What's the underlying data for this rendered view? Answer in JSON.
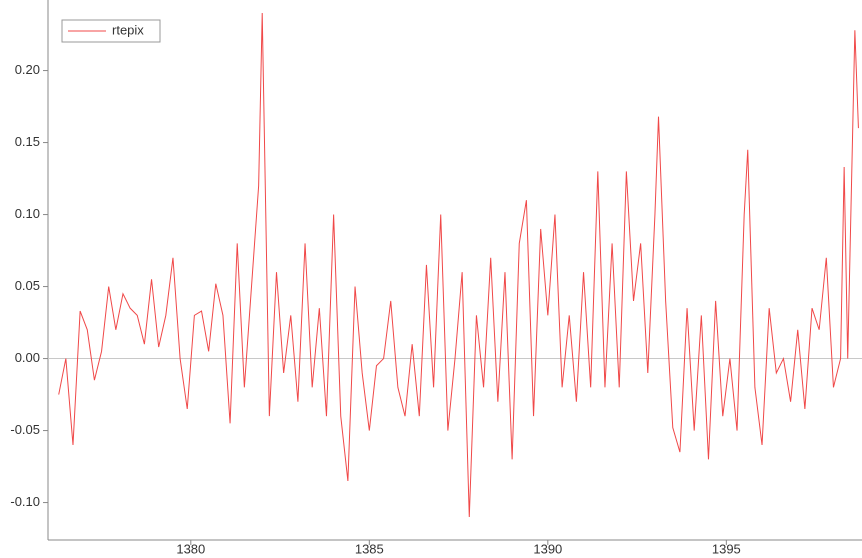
{
  "chart_data": {
    "type": "line",
    "x": [
      1376.3,
      1376.5,
      1376.7,
      1376.9,
      1377.1,
      1377.3,
      1377.5,
      1377.7,
      1377.9,
      1378.1,
      1378.3,
      1378.5,
      1378.7,
      1378.9,
      1379.1,
      1379.3,
      1379.5,
      1379.7,
      1379.9,
      1380.1,
      1380.3,
      1380.5,
      1380.7,
      1380.9,
      1381.1,
      1381.3,
      1381.5,
      1381.7,
      1381.9,
      1382.0,
      1382.2,
      1382.4,
      1382.6,
      1382.8,
      1383.0,
      1383.2,
      1383.4,
      1383.6,
      1383.8,
      1384.0,
      1384.2,
      1384.4,
      1384.6,
      1384.8,
      1385.0,
      1385.2,
      1385.4,
      1385.6,
      1385.8,
      1386.0,
      1386.2,
      1386.4,
      1386.6,
      1386.8,
      1387.0,
      1387.2,
      1387.4,
      1387.6,
      1387.8,
      1388.0,
      1388.2,
      1388.4,
      1388.6,
      1388.8,
      1389.0,
      1389.2,
      1389.4,
      1389.6,
      1389.8,
      1390.0,
      1390.2,
      1390.4,
      1390.6,
      1390.8,
      1391.0,
      1391.2,
      1391.4,
      1391.6,
      1391.8,
      1392.0,
      1392.2,
      1392.4,
      1392.6,
      1392.8,
      1393.0,
      1393.1,
      1393.3,
      1393.5,
      1393.7,
      1393.9,
      1394.1,
      1394.3,
      1394.5,
      1394.7,
      1394.9,
      1395.1,
      1395.3,
      1395.5,
      1395.6,
      1395.8,
      1396.0,
      1396.2,
      1396.4,
      1396.6,
      1396.8,
      1397.0,
      1397.2,
      1397.4,
      1397.6,
      1397.8,
      1398.0,
      1398.2,
      1398.3,
      1398.4,
      1398.6,
      1398.7
    ],
    "series": [
      {
        "name": "rtepix",
        "color": "#f04848",
        "values": [
          -0.025,
          0.0,
          -0.06,
          0.033,
          0.02,
          -0.015,
          0.005,
          0.05,
          0.02,
          0.045,
          0.035,
          0.03,
          0.01,
          0.055,
          0.008,
          0.03,
          0.07,
          0.0,
          -0.035,
          0.03,
          0.033,
          0.005,
          0.052,
          0.03,
          -0.045,
          0.08,
          -0.02,
          0.05,
          0.12,
          0.24,
          -0.04,
          0.06,
          -0.01,
          0.03,
          -0.03,
          0.08,
          -0.02,
          0.035,
          -0.04,
          0.1,
          -0.04,
          -0.085,
          0.05,
          -0.01,
          -0.05,
          -0.005,
          0.0,
          0.04,
          -0.02,
          -0.04,
          0.01,
          -0.04,
          0.065,
          -0.02,
          0.1,
          -0.05,
          0.0,
          0.06,
          -0.11,
          0.03,
          -0.02,
          0.07,
          -0.03,
          0.06,
          -0.07,
          0.08,
          0.11,
          -0.04,
          0.09,
          0.03,
          0.1,
          -0.02,
          0.03,
          -0.03,
          0.06,
          -0.02,
          0.13,
          -0.02,
          0.08,
          -0.02,
          0.13,
          0.04,
          0.08,
          -0.01,
          0.1,
          0.168,
          0.04,
          -0.048,
          -0.065,
          0.035,
          -0.05,
          0.03,
          -0.07,
          0.04,
          -0.04,
          0.0,
          -0.05,
          0.1,
          0.145,
          -0.02,
          -0.06,
          0.035,
          -0.01,
          0.0,
          -0.03,
          0.02,
          -0.035,
          0.035,
          0.02,
          0.07,
          -0.02,
          0.0,
          0.133,
          0.0,
          0.228,
          0.16
        ]
      }
    ],
    "xlim": [
      1376,
      1398.8
    ],
    "ylim": [
      -0.126,
      0.249
    ],
    "xticks": [
      1380,
      1385,
      1390,
      1395
    ],
    "yticks": [
      {
        "value": -0.1,
        "label": "-0.10"
      },
      {
        "value": -0.05,
        "label": "-0.05"
      },
      {
        "value": 0,
        "label": "0.00"
      },
      {
        "value": 0.05,
        "label": "0.05"
      },
      {
        "value": 0.1,
        "label": "0.10"
      },
      {
        "value": 0.15,
        "label": "0.15"
      },
      {
        "value": 0.2,
        "label": "0.20"
      }
    ],
    "reference_line": 0,
    "legend": "upper left"
  }
}
